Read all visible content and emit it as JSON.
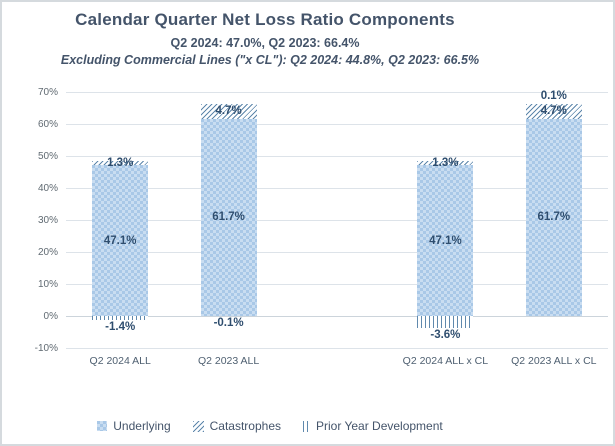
{
  "header": {
    "title": "Calendar Quarter Net Loss Ratio Components",
    "subtitle": "Q2 2024: 47.0%, Q2 2023: 66.4%",
    "subtitle2": "Excluding Commercial Lines (\"x CL\"): Q2 2024: 44.8%, Q2 2023: 66.5%"
  },
  "chart_data": {
    "type": "bar",
    "stacked": true,
    "title": "Calendar Quarter Net Loss Ratio Components",
    "subtitle": "Q2 2024: 47.0%, Q2 2023: 66.4%",
    "subtitle2": "Excluding Commercial Lines (\"x CL\"): Q2 2024: 44.8%, Q2 2023: 66.5%",
    "categories": [
      "Q2 2024 ALL",
      "Q2 2023 ALL",
      "Q2 2024 ALL x CL",
      "Q2 2023 ALL x CL"
    ],
    "category_slots": [
      0,
      1,
      3,
      4
    ],
    "slot_count": 5,
    "series": [
      {
        "name": "Underlying",
        "pattern": "checker",
        "values": [
          47.1,
          61.7,
          47.1,
          61.7
        ],
        "labels": [
          "47.1%",
          "61.7%",
          "47.1%",
          "61.7%"
        ]
      },
      {
        "name": "Catastrophes",
        "pattern": "diagonal-hatch",
        "values": [
          1.3,
          4.7,
          1.3,
          4.7
        ],
        "labels": [
          "1.3%",
          "4.7%",
          "1.3%",
          "4.7%"
        ]
      },
      {
        "name": "Prior Year Development",
        "pattern": "vertical-lines",
        "values": [
          -1.4,
          -0.1,
          -3.6,
          0.1
        ],
        "labels": [
          "-1.4%",
          "-0.1%",
          "-3.6%",
          "0.1%"
        ]
      }
    ],
    "ylim": [
      -10,
      70
    ],
    "ytick_step": 10,
    "ytick_labels": [
      "70%",
      "60%",
      "50%",
      "40%",
      "30%",
      "20%",
      "10%",
      "0%",
      "-10%"
    ],
    "grid": true,
    "legend_position": "bottom"
  },
  "legend": {
    "items": [
      {
        "label": "Underlying",
        "pattern": "checker"
      },
      {
        "label": "Catastrophes",
        "pattern": "diagonal-hatch"
      },
      {
        "label": "Prior Year Development",
        "pattern": "vertical-lines"
      }
    ]
  },
  "colors": {
    "title_text": "#44546a",
    "data_label_text": "#2e4d6e",
    "axis_tick_text": "#606a72",
    "bar_fill_light": "#c9ddf1",
    "bar_fill_dark": "#a9c8e7",
    "pattern_line": "#5e87ab",
    "gridline": "#dde3e9",
    "frame_border": "#d5dade"
  }
}
